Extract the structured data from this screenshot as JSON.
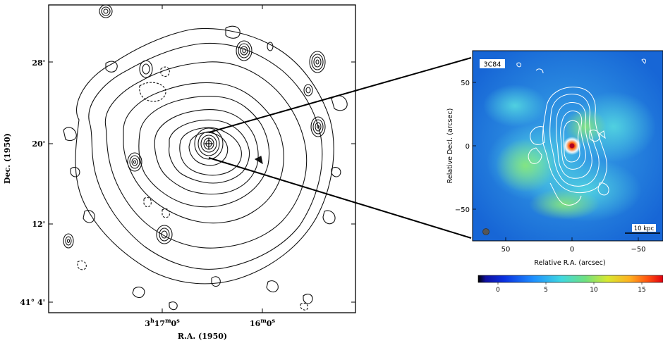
{
  "left_panel": {
    "xlabel": "R.A. (1950)",
    "ylabel": "Dec. (1950)",
    "x_ticks": [
      {
        "label": "3h17m0s",
        "pos": "left"
      },
      {
        "label": "16m0s",
        "pos": "right"
      }
    ],
    "y_ticks": [
      "28'",
      "20'",
      "12'",
      "41° 4'"
    ]
  },
  "right_panel": {
    "label": "3C84",
    "scalebar_label": "10 kpc",
    "xlabel": "Relative R.A. (arcsec)",
    "ylabel": "Relative Decl. (arcsec)",
    "x_ticks": [
      "50",
      "0",
      "−50"
    ],
    "y_ticks": [
      "50",
      "0",
      "−50"
    ],
    "colorbar_ticks": [
      "0",
      "5",
      "10",
      "15"
    ],
    "colors": {
      "background": "#1d7fe0",
      "cyan": "#38c3e8",
      "green": "#72e08a",
      "contour": "#ffffff",
      "core": "#d81a10"
    }
  },
  "chart_data": [
    {
      "type": "heatmap",
      "title": "",
      "xlabel": "R.A. (1950)",
      "ylabel": "Dec. (1950)",
      "x_tick_labels": [
        "3h17m0s",
        "16m0s"
      ],
      "y_tick_labels": [
        "28'",
        "20'",
        "12'",
        "41° 4'"
      ],
      "style": "contour map"
    },
    {
      "type": "heatmap",
      "title": "3C84",
      "xlabel": "Relative R.A. (arcsec)",
      "ylabel": "Relative Decl. (arcsec)",
      "xlim": [
        75,
        -70
      ],
      "ylim": [
        -70,
        75
      ],
      "x_ticks": [
        50,
        0,
        -50
      ],
      "y_ticks": [
        50,
        0,
        -50
      ],
      "colorbar_range": [
        -2,
        17
      ],
      "colorbar_ticks": [
        0,
        5,
        10,
        15
      ],
      "overlay": "white radio contours",
      "scalebar": "10 kpc"
    }
  ]
}
